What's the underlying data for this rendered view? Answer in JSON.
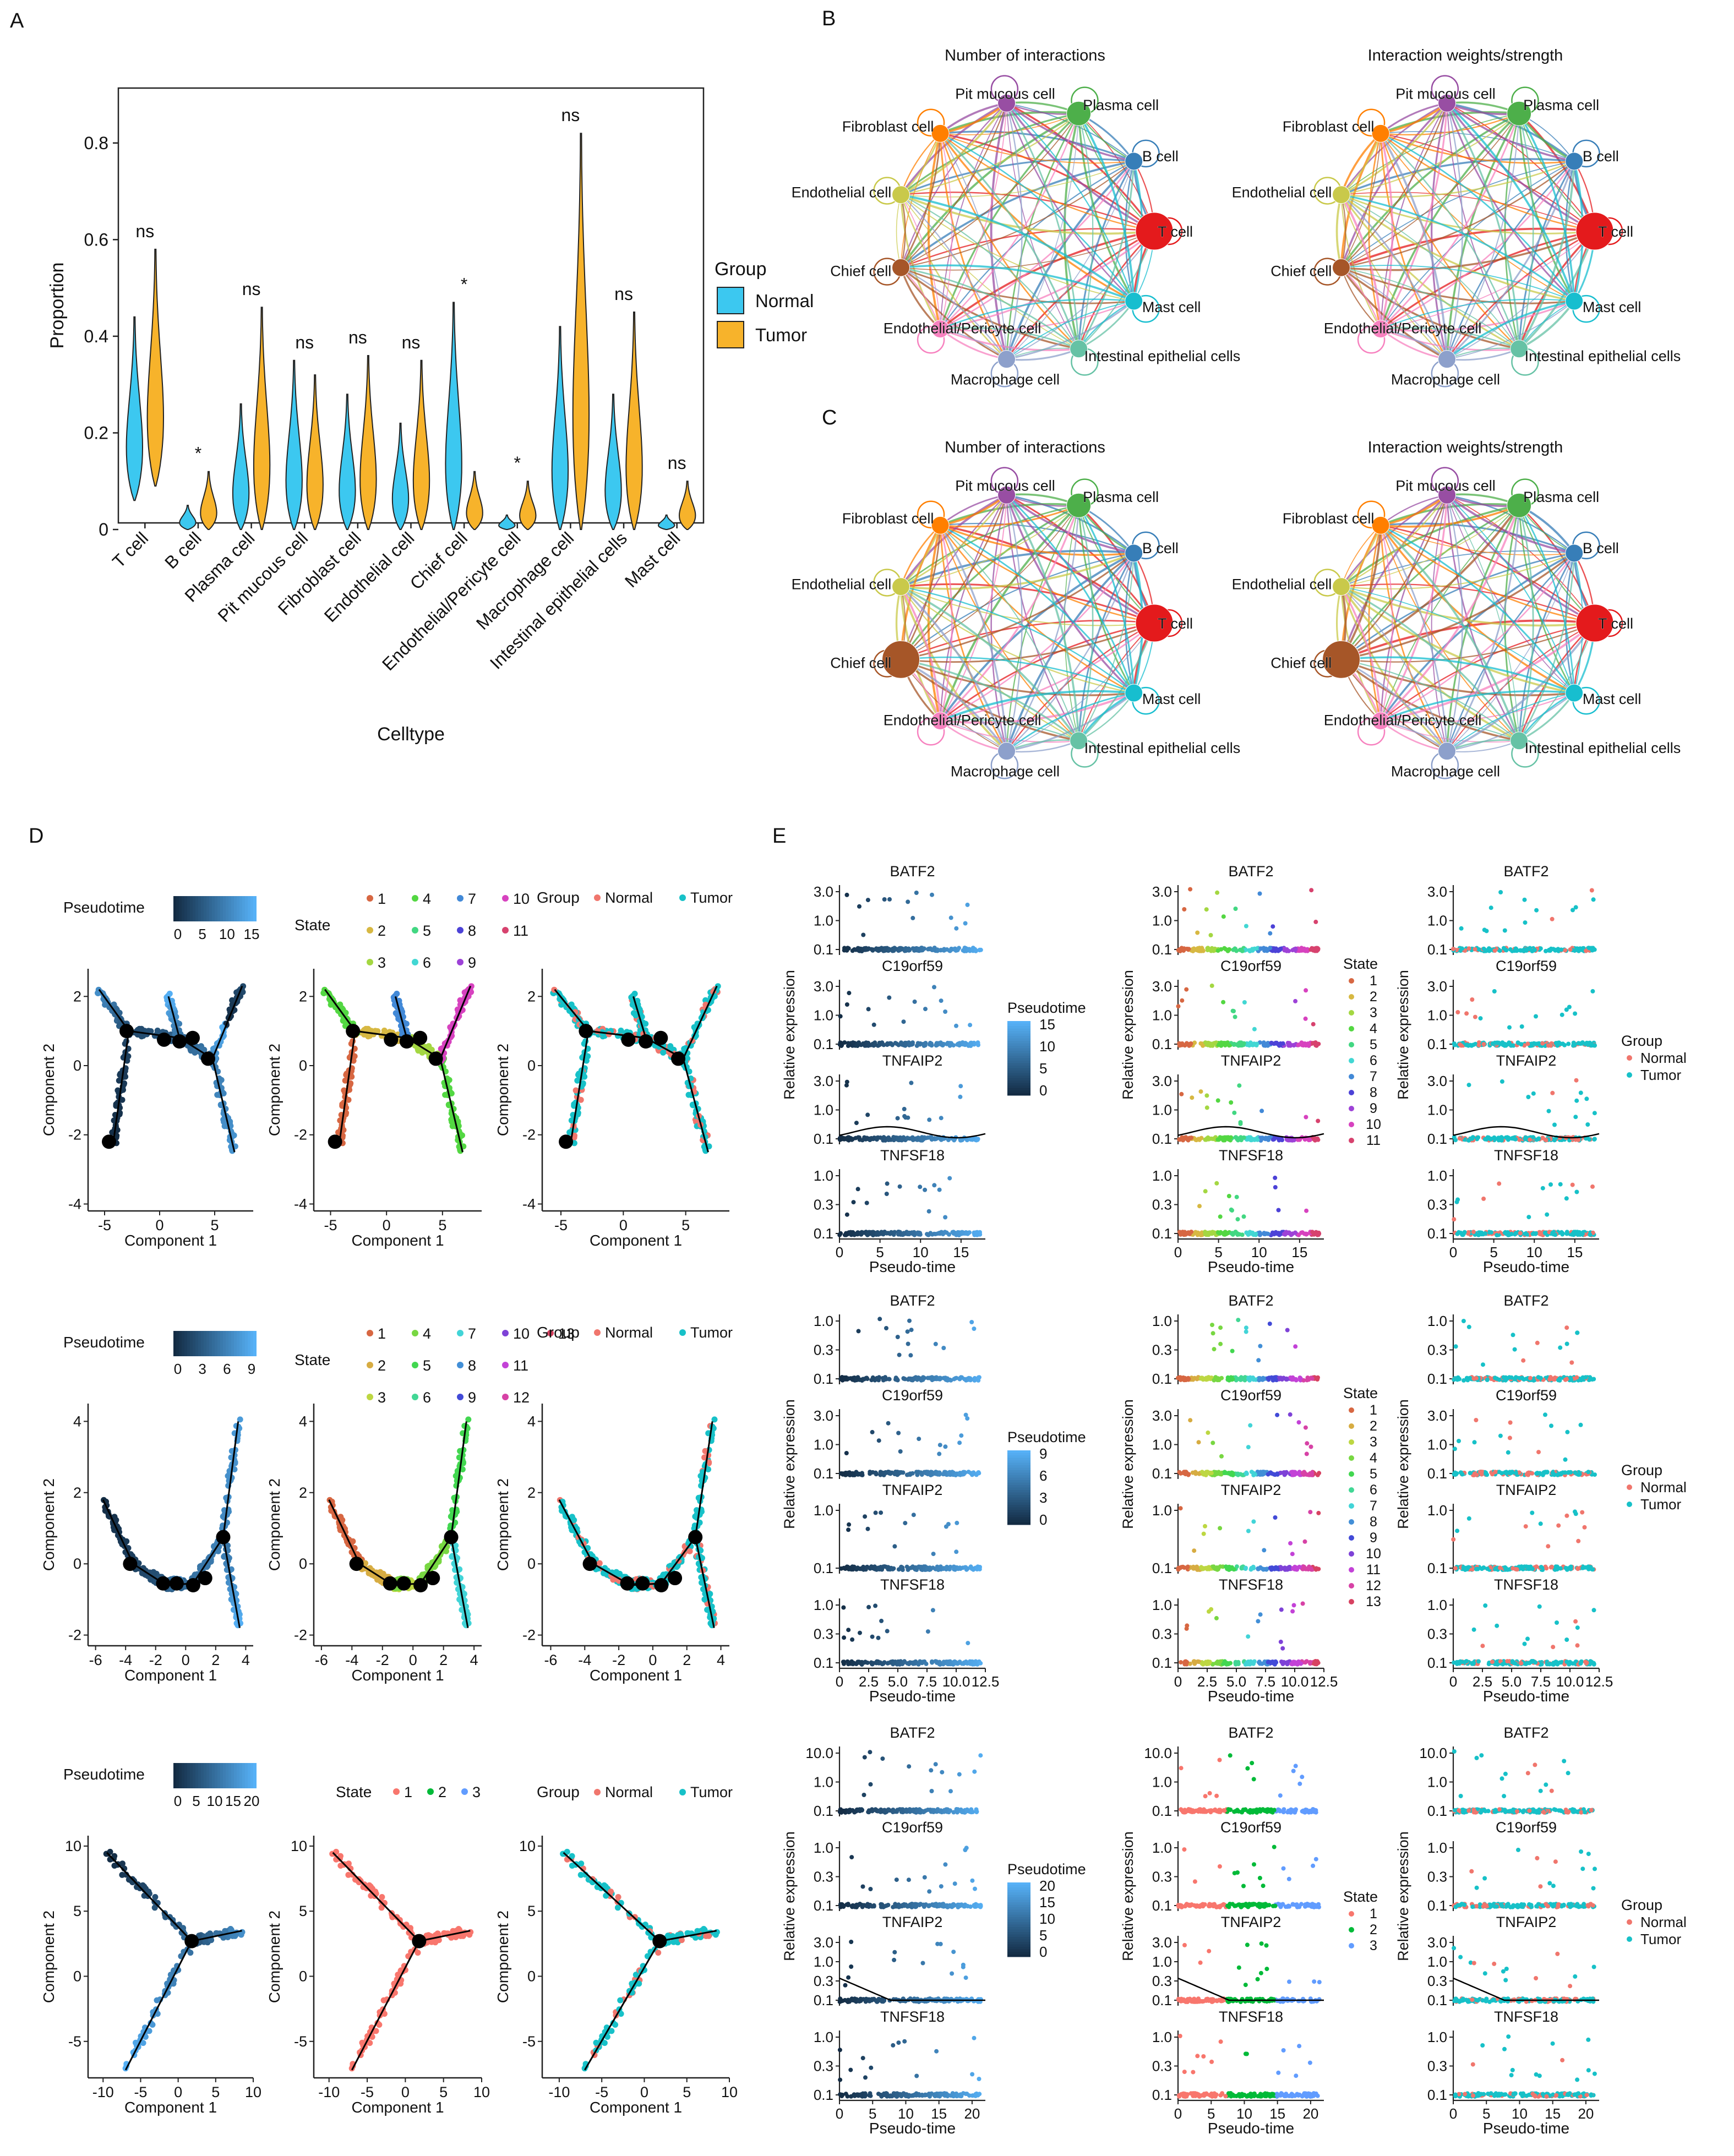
{
  "panel_labels": {
    "A": "A",
    "B": "B",
    "C": "C",
    "D": "D",
    "E": "E"
  },
  "colors": {
    "normal": "#3cc8f0",
    "tumor": "#f7b32b",
    "normal_pt": "#f0766d",
    "tumor_pt": "#17c1c8",
    "node_black": "#000000"
  },
  "chart_data": [
    {
      "id": "A",
      "type": "violin",
      "xlabel": "Celltype",
      "ylabel": "Proportion",
      "ylim": [
        0,
        0.9
      ],
      "yticks": [
        "0",
        "0.2",
        "0.4",
        "0.6",
        "0.8"
      ],
      "legend": {
        "title": "Group",
        "entries": [
          "Normal",
          "Tumor"
        ],
        "position": "right"
      },
      "categories": [
        "T cell",
        "B cell",
        "Plasma cell",
        "Pit mucous cell",
        "Fibroblast cell",
        "Endothelial cell",
        "Chief cell",
        "Endothelial/Pericyte cell",
        "Macrophage cell",
        "Intestinal epithelial cells",
        "Mast cell"
      ],
      "significance": [
        "ns",
        "*",
        "ns",
        "ns",
        "ns",
        "ns",
        "*",
        "*",
        "ns",
        "ns",
        "ns"
      ],
      "series": [
        {
          "name": "Normal",
          "min": [
            0.06,
            0.0,
            0.0,
            0.0,
            0.0,
            0.0,
            0.0,
            0.0,
            0.0,
            0.0,
            0.0
          ],
          "max": [
            0.44,
            0.05,
            0.26,
            0.35,
            0.28,
            0.22,
            0.47,
            0.03,
            0.42,
            0.28,
            0.03
          ]
        },
        {
          "name": "Tumor",
          "min": [
            0.09,
            0.0,
            0.0,
            0.0,
            0.0,
            0.0,
            0.0,
            0.0,
            0.0,
            0.0,
            0.0
          ],
          "max": [
            0.58,
            0.12,
            0.46,
            0.32,
            0.36,
            0.35,
            0.12,
            0.1,
            0.82,
            0.45,
            0.1
          ]
        }
      ]
    },
    {
      "id": "B",
      "type": "network",
      "titles": [
        "Number of interactions",
        "Interaction weights/strength"
      ],
      "nodes": [
        "T cell",
        "B cell",
        "Plasma cell",
        "Pit mucous cell",
        "Fibroblast cell",
        "Endothelial cell",
        "Chief cell",
        "Endothelial/Pericyte cell",
        "Macrophage cell",
        "Intestinal epithelial cells",
        "Mast cell"
      ],
      "node_labels": [
        "T cell",
        "B cell",
        "Plasma cell",
        "Pit mucous cell",
        "Fibroblast cell",
        "Endothelial cell",
        "Chief cell",
        "Endothelial/Pericyte cell",
        "Macrophage cell",
        "Intestinal epithelial cells",
        "Mast cell"
      ],
      "node_weight": [
        4,
        1,
        2,
        1,
        1,
        1,
        1,
        1,
        1,
        1,
        1
      ]
    },
    {
      "id": "C",
      "type": "network",
      "titles": [
        "Number of interactions",
        "Interaction weights/strength"
      ],
      "nodes": [
        "T cell",
        "B cell",
        "Plasma cell",
        "Pit mucous cell",
        "Fibroblast cell",
        "Endothelial cell",
        "Chief cell",
        "Endothelial/Pericyte cell",
        "Macrophage cell",
        "Intestinal epithelial cells",
        "Mast cell"
      ],
      "node_labels": [
        "T cell",
        "B cell",
        "Plasma cell",
        "Pit mucous cell",
        "Fibroblast cell",
        "Endothelial cell",
        "Chief cell",
        "Endothelial/Pericyte cell",
        "Macrophage cell",
        "Intestinal epithelial cells",
        "Mast cell"
      ],
      "node_weight": [
        4,
        1,
        2,
        1,
        1,
        1,
        4,
        1,
        1,
        1,
        1
      ]
    },
    {
      "id": "D",
      "type": "scatter",
      "xlabel": "Component 1",
      "ylabel": "Component 2",
      "rows": [
        {
          "xlim": [
            -6.5,
            8.5
          ],
          "ylim": [
            -4.2,
            2.8
          ],
          "xticks": [
            "-5",
            "0",
            "5"
          ],
          "yticks": [
            "-4",
            "-2",
            "0",
            "2"
          ],
          "pseudotime_ticks": [
            "0",
            "5",
            "10",
            "15"
          ],
          "states": [
            "1",
            "2",
            "3",
            "4",
            "5",
            "6",
            "7",
            "8",
            "9",
            "10",
            "11"
          ],
          "branches": [
            [
              [
                -4.2,
                -2.2
              ],
              [
                -2.8,
                1.0
              ],
              [
                1.8,
                0.8
              ],
              [
                4.8,
                0.2
              ],
              [
                6.8,
                -2.5
              ]
            ],
            [
              [
                -2.8,
                1.0
              ],
              [
                -5.5,
                2.2
              ]
            ],
            [
              [
                1.8,
                0.8
              ],
              [
                0.8,
                2.0
              ]
            ],
            [
              [
                4.8,
                0.2
              ],
              [
                7.5,
                2.3
              ]
            ]
          ],
          "nodes": [
            [
              -4.6,
              -2.2
            ],
            [
              -3.0,
              1.0
            ],
            [
              0.4,
              0.75
            ],
            [
              1.8,
              0.7
            ],
            [
              3.0,
              0.8
            ],
            [
              4.4,
              0.2
            ]
          ]
        },
        {
          "xlim": [
            -6.5,
            4.5
          ],
          "ylim": [
            -2.3,
            4.5
          ],
          "xticks": [
            "-6",
            "-4",
            "-2",
            "0",
            "2",
            "4"
          ],
          "yticks": [
            "-2",
            "0",
            "2",
            "4"
          ],
          "pseudotime_ticks": [
            "0",
            "3",
            "6",
            "9"
          ],
          "states": [
            "1",
            "2",
            "3",
            "4",
            "5",
            "6",
            "7",
            "8",
            "9",
            "10",
            "11",
            "12",
            "13"
          ],
          "branches": [
            [
              [
                -5.5,
                1.8
              ],
              [
                -3.5,
                0
              ],
              [
                -1.3,
                -0.6
              ],
              [
                0.5,
                -0.55
              ],
              [
                2.5,
                0.75
              ],
              [
                3.5,
                4.0
              ]
            ],
            [
              [
                -1.3,
                -0.6
              ],
              [
                -0.5,
                -0.5
              ]
            ],
            [
              [
                2.5,
                0.75
              ],
              [
                3.6,
                -1.8
              ]
            ]
          ],
          "nodes": [
            [
              -3.7,
              0
            ],
            [
              -1.5,
              -0.55
            ],
            [
              -0.6,
              -0.55
            ],
            [
              0.5,
              -0.6
            ],
            [
              1.3,
              -0.4
            ],
            [
              2.5,
              0.75
            ]
          ]
        },
        {
          "xlim": [
            -12,
            10
          ],
          "ylim": [
            -7.8,
            10.8
          ],
          "xticks": [
            "-10",
            "-5",
            "0",
            "5",
            "10"
          ],
          "yticks": [
            "-5",
            "0",
            "5",
            "10"
          ],
          "pseudotime_ticks": [
            "0",
            "5",
            "10",
            "15",
            "20"
          ],
          "states": [
            "1",
            "2",
            "3"
          ],
          "branches": [
            [
              [
                -9.5,
                9.5
              ],
              [
                1.8,
                2.7
              ]
            ],
            [
              [
                1.8,
                2.7
              ],
              [
                8.5,
                3.5
              ]
            ],
            [
              [
                1.8,
                2.7
              ],
              [
                -7,
                -7.2
              ]
            ]
          ],
          "nodes": [
            [
              1.8,
              2.7
            ]
          ]
        }
      ],
      "legend_titles": [
        "Pseudotime",
        "State",
        "Group"
      ],
      "group_entries": [
        "Normal",
        "Tumor"
      ]
    },
    {
      "id": "E",
      "type": "scatter",
      "xlabel": "Pseudo-time",
      "ylabel": "Relative expression",
      "genes": [
        "BATF2",
        "C19orf59",
        "TNFAIP2",
        "TNFSF18"
      ],
      "rows": [
        {
          "xmax": 18,
          "xticks": [
            "0",
            "5",
            "10",
            "15"
          ],
          "pseudotime_ticks": [
            "0",
            "5",
            "10",
            "15"
          ],
          "states": [
            "1",
            "2",
            "3",
            "4",
            "5",
            "6",
            "7",
            "8",
            "9",
            "10",
            "11"
          ],
          "yticks": [
            [
              "0.1",
              "1.0",
              "3.0"
            ],
            [
              "0.1",
              "1.0",
              "3.0"
            ],
            [
              "0.1",
              "1.0",
              "3.0"
            ],
            [
              "0.1",
              "0.3",
              "1.0"
            ]
          ]
        },
        {
          "xmax": 12.5,
          "xticks": [
            "0",
            "2.5",
            "5.0",
            "7.5",
            "10.0",
            "12.5"
          ],
          "pseudotime_ticks": [
            "0",
            "3",
            "6",
            "9"
          ],
          "states": [
            "1",
            "2",
            "3",
            "4",
            "5",
            "6",
            "7",
            "8",
            "9",
            "10",
            "11",
            "12",
            "13"
          ],
          "yticks": [
            [
              "0.1",
              "0.3",
              "1.0"
            ],
            [
              "0.1",
              "1.0",
              "3.0"
            ],
            [
              "0.1",
              "1.0"
            ],
            [
              "0.1",
              "0.3",
              "1.0"
            ]
          ]
        },
        {
          "xmax": 22,
          "xticks": [
            "0",
            "5",
            "10",
            "15",
            "20"
          ],
          "pseudotime_ticks": [
            "0",
            "5",
            "10",
            "15",
            "20"
          ],
          "states": [
            "1",
            "2",
            "3"
          ],
          "yticks": [
            [
              "0.1",
              "1.0",
              "10.0"
            ],
            [
              "0.1",
              "0.3",
              "1.0"
            ],
            [
              "0.1",
              "0.3",
              "1.0",
              "3.0"
            ],
            [
              "0.1",
              "0.3",
              "1.0"
            ]
          ]
        }
      ],
      "legend_titles": [
        "Pseudotime",
        "State",
        "Group"
      ],
      "group_entries": [
        "Normal",
        "Tumor"
      ]
    }
  ]
}
